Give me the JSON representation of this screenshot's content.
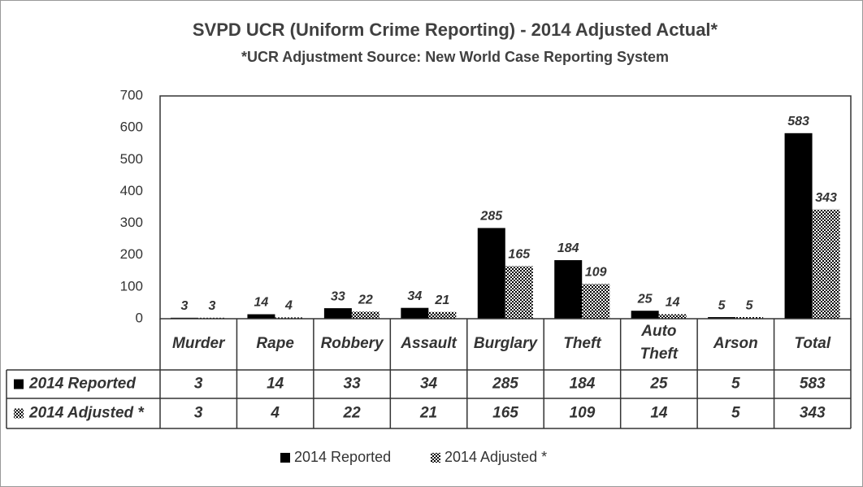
{
  "chart_data": {
    "type": "bar",
    "title": "SVPD UCR (Uniform Crime Reporting) - 2014 Adjusted Actual*",
    "subtitle": "*UCR Adjustment Source: New World Case Reporting System",
    "categories": [
      "Murder",
      "Rape",
      "Robbery",
      "Assault",
      "Burglary",
      "Theft",
      "Auto Theft",
      "Arson",
      "Total"
    ],
    "series": [
      {
        "name": "2014 Reported",
        "color": "#000000",
        "values": [
          3,
          14,
          33,
          34,
          285,
          184,
          25,
          5,
          583
        ]
      },
      {
        "name": "2014 Adjusted *",
        "color": "#000000",
        "pattern": "checker",
        "values": [
          3,
          4,
          22,
          21,
          165,
          109,
          14,
          5,
          343
        ]
      }
    ],
    "ylim": [
      0,
      700
    ],
    "yticks": [
      0,
      100,
      200,
      300,
      400,
      500,
      600,
      700
    ],
    "grid": false,
    "data_table": true,
    "legend": "bottom"
  }
}
